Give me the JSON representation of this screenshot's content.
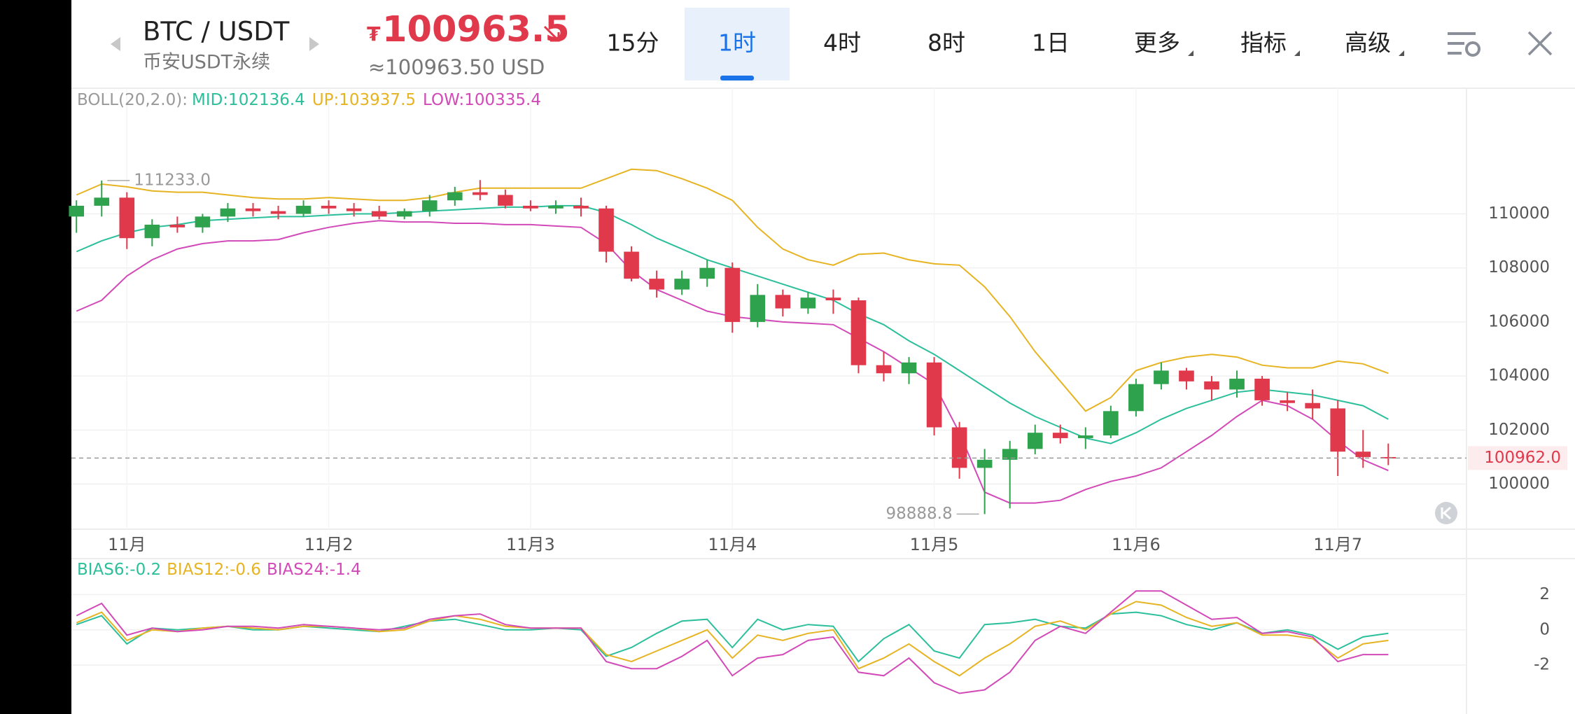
{
  "header": {
    "symbol": "BTC / USDT",
    "exchange": "币安USDT永续",
    "currency": "₮",
    "price": "100963.5",
    "price_usd": "≈100963.50 USD",
    "tabs": [
      "15分",
      "1时",
      "4时",
      "8时",
      "1日",
      "更多",
      "指标",
      "高级"
    ],
    "active_tab": 1
  },
  "chart_data": [
    {
      "type": "candlestick",
      "indicator": "BOLL(20,2.0):",
      "up_color": "#2ea24d",
      "down_color": "#e0394b",
      "open": [
        109900,
        110300,
        110600,
        109100,
        109600,
        109500,
        109900,
        110200,
        110100,
        110000,
        110300,
        110200,
        110100,
        109900,
        110100,
        110500,
        110800,
        110700,
        110300,
        110200,
        110300,
        110200,
        108600,
        107600,
        107200,
        107600,
        108000,
        106000,
        107000,
        106500,
        106900,
        106800,
        104400,
        104100,
        104500,
        102100,
        100600,
        100900,
        101300,
        101900,
        101700,
        101800,
        102700,
        103700,
        104200,
        103800,
        103500,
        103900,
        103100,
        103000,
        102800,
        101200,
        101000
      ],
      "high": [
        110500,
        111233,
        110800,
        109800,
        109900,
        110000,
        110400,
        110400,
        110300,
        110500,
        110500,
        110400,
        110300,
        110200,
        110700,
        111000,
        111250,
        110900,
        110500,
        110500,
        110600,
        110300,
        108800,
        107900,
        107900,
        108300,
        108200,
        107400,
        107200,
        107100,
        107200,
        106900,
        104900,
        104700,
        104700,
        102300,
        101300,
        101600,
        102200,
        102200,
        102100,
        102900,
        103900,
        104500,
        104300,
        104000,
        104200,
        104000,
        103400,
        103500,
        103100,
        102000,
        101500
      ],
      "low": [
        109300,
        109900,
        108700,
        108800,
        109300,
        109300,
        109700,
        109900,
        109800,
        109900,
        110000,
        109900,
        109800,
        109800,
        109900,
        110300,
        110500,
        110200,
        110100,
        110000,
        109900,
        108200,
        107500,
        106900,
        107000,
        107300,
        105600,
        105800,
        106200,
        106300,
        106300,
        104100,
        103800,
        103700,
        101800,
        100200,
        98888.8,
        99100,
        101100,
        101500,
        101300,
        101700,
        102500,
        103500,
        103500,
        103100,
        103200,
        102900,
        102700,
        102400,
        100300,
        100600,
        100700
      ],
      "close": [
        110300,
        110600,
        109100,
        109600,
        109500,
        109900,
        110200,
        110100,
        110000,
        110300,
        110200,
        110100,
        109900,
        110100,
        110500,
        110800,
        110700,
        110300,
        110200,
        110300,
        110200,
        108600,
        107600,
        107200,
        107600,
        108000,
        106000,
        107000,
        106500,
        106900,
        106800,
        104400,
        104100,
        104500,
        102100,
        100600,
        100900,
        101300,
        101900,
        101700,
        101800,
        102700,
        103700,
        104200,
        103800,
        103500,
        103900,
        103100,
        103000,
        102800,
        101200,
        101000,
        100962
      ],
      "lines": [
        {
          "label": "MID:102136.4",
          "color": "#2bbf9b",
          "values": [
            108600,
            109000,
            109300,
            109500,
            109600,
            109750,
            109800,
            109850,
            109900,
            109900,
            109950,
            110000,
            110000,
            110050,
            110100,
            110150,
            110200,
            110250,
            110250,
            110300,
            110300,
            110050,
            109600,
            109100,
            108700,
            108300,
            108000,
            107700,
            107400,
            107100,
            106800,
            106300,
            105900,
            105300,
            104800,
            104200,
            103600,
            103000,
            102500,
            102100,
            101700,
            101500,
            101900,
            102400,
            102800,
            103100,
            103400,
            103500,
            103400,
            103300,
            103100,
            102900,
            102400
          ]
        },
        {
          "label": "UP:103937.5",
          "color": "#e6b422",
          "values": [
            110700,
            111100,
            111000,
            110850,
            110800,
            110800,
            110700,
            110600,
            110550,
            110550,
            110600,
            110550,
            110500,
            110500,
            110600,
            110800,
            110950,
            110950,
            110950,
            110950,
            110950,
            111300,
            111650,
            111600,
            111300,
            110950,
            110500,
            109500,
            108700,
            108300,
            108100,
            108500,
            108550,
            108300,
            108150,
            108100,
            107300,
            106200,
            104900,
            103800,
            102700,
            103200,
            104200,
            104500,
            104700,
            104800,
            104700,
            104400,
            104300,
            104300,
            104550,
            104450,
            104100
          ]
        },
        {
          "label": "LOW:100335.4",
          "color": "#d24ab8",
          "values": [
            106400,
            106800,
            107700,
            108300,
            108700,
            108900,
            109000,
            109000,
            109050,
            109300,
            109500,
            109650,
            109750,
            109700,
            109700,
            109650,
            109650,
            109600,
            109600,
            109550,
            109500,
            108900,
            107900,
            107200,
            106800,
            106400,
            106200,
            106100,
            106000,
            105950,
            105900,
            105400,
            104900,
            104300,
            103700,
            101900,
            99700,
            99300,
            99300,
            99400,
            99800,
            100100,
            100300,
            100600,
            101200,
            101800,
            102500,
            103100,
            102900,
            102400,
            101600,
            100900,
            100500
          ]
        }
      ],
      "annotations": [
        {
          "index": 1,
          "value": 111233,
          "label": "111233.0"
        },
        {
          "index": 36,
          "value": 98888.8,
          "label": "98888.8"
        }
      ],
      "last_price": {
        "value": 100962,
        "label": "100962.0"
      },
      "xlim": [
        -0.2,
        55.1
      ],
      "xticks": [
        {
          "value": 2,
          "label": "11月"
        },
        {
          "value": 10,
          "label": "11月2"
        },
        {
          "value": 18,
          "label": "11月3"
        },
        {
          "value": 26,
          "label": "11月4"
        },
        {
          "value": 34,
          "label": "11月5"
        },
        {
          "value": 42,
          "label": "11月6"
        },
        {
          "value": 50,
          "label": "11月7"
        }
      ],
      "ylim": [
        98330,
        114650
      ],
      "yticks": [
        100000,
        102000,
        104000,
        106000,
        108000,
        110000
      ],
      "grid": true
    },
    {
      "type": "line",
      "series": [
        {
          "name": "BIAS6:-0.2",
          "color": "#2bbf9b",
          "values": [
            0.3,
            0.8,
            -0.8,
            0.1,
            0,
            0.1,
            0.2,
            0,
            0,
            0.2,
            0.1,
            0,
            -0.1,
            0.2,
            0.5,
            0.6,
            0.3,
            0,
            0,
            0.1,
            0,
            -1.5,
            -1,
            -0.2,
            0.5,
            0.6,
            -1,
            0.6,
            0,
            0.3,
            0.2,
            -1.8,
            -0.5,
            0.3,
            -1.2,
            -1.6,
            0.3,
            0.4,
            0.6,
            0.2,
            0.1,
            0.9,
            1,
            0.8,
            0.3,
            0,
            0.4,
            -0.2,
            0,
            -0.3,
            -1.1,
            -0.4,
            -0.2
          ]
        },
        {
          "name": "BIAS12:-0.6",
          "color": "#e6b422",
          "values": [
            0.4,
            1,
            -0.6,
            0,
            -0.1,
            0.1,
            0.2,
            0.1,
            0,
            0.2,
            0.2,
            0.1,
            -0.1,
            0,
            0.5,
            0.8,
            0.6,
            0.2,
            0.1,
            0.1,
            0.1,
            -1.4,
            -1.8,
            -1.2,
            -0.6,
            0,
            -1.6,
            -0.3,
            -0.6,
            -0.2,
            0,
            -2.2,
            -1.6,
            -0.8,
            -1.8,
            -2.6,
            -1.6,
            -0.8,
            0.2,
            0.5,
            0,
            0.9,
            1.6,
            1.4,
            0.7,
            0.2,
            0.4,
            -0.3,
            -0.3,
            -0.5,
            -1.6,
            -0.8,
            -0.6
          ]
        },
        {
          "name": "BIAS24:-1.4",
          "color": "#d24ab8",
          "values": [
            0.8,
            1.5,
            -0.3,
            0.1,
            -0.1,
            0,
            0.2,
            0.2,
            0.1,
            0.3,
            0.2,
            0.1,
            0,
            0.1,
            0.6,
            0.8,
            0.9,
            0.3,
            0.1,
            0.1,
            0.1,
            -1.8,
            -2.2,
            -2.2,
            -1.5,
            -0.6,
            -2.6,
            -1.6,
            -1.4,
            -0.6,
            -0.4,
            -2.4,
            -2.6,
            -1.6,
            -3,
            -3.6,
            -3.4,
            -2.4,
            -0.6,
            0.2,
            -0.2,
            1,
            2.2,
            2.2,
            1.4,
            0.6,
            0.7,
            -0.2,
            -0.1,
            -0.4,
            -1.8,
            -1.4,
            -1.4
          ]
        }
      ],
      "xlim": [
        -0.2,
        55.1
      ],
      "ylim": [
        -4.77,
        3.8
      ],
      "yticks": [
        2,
        0,
        -2
      ]
    }
  ]
}
